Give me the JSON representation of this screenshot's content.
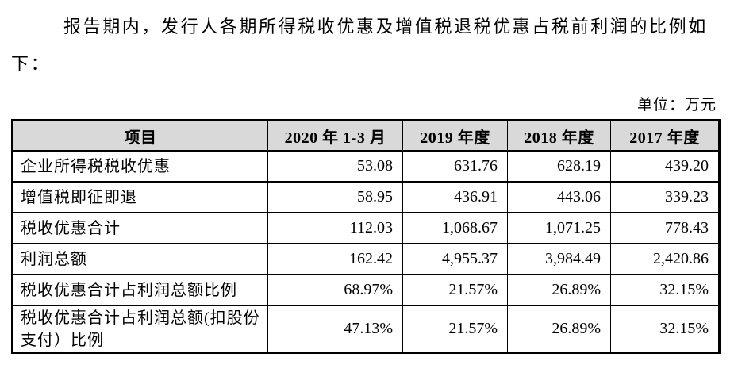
{
  "intro": {
    "line1": "报告期内，发行人各期所得税收优惠及增值税退税优惠占税前利润的比例如",
    "line2": "下："
  },
  "unit_label": "单位：万元",
  "table": {
    "columns": [
      "项目",
      "2020 年 1-3 月",
      "2019 年度",
      "2018 年度",
      "2017 年度"
    ],
    "rows": [
      {
        "label": "企业所得税税收优惠",
        "values": [
          "53.08",
          "631.76",
          "628.19",
          "439.20"
        ]
      },
      {
        "label": "增值税即征即退",
        "values": [
          "58.95",
          "436.91",
          "443.06",
          "339.23"
        ]
      },
      {
        "label": "税收优惠合计",
        "values": [
          "112.03",
          "1,068.67",
          "1,071.25",
          "778.43"
        ]
      },
      {
        "label": "利润总额",
        "values": [
          "162.42",
          "4,955.37",
          "3,984.49",
          "2,420.86"
        ]
      },
      {
        "label": "税收优惠合计占利润总额比例",
        "values": [
          "68.97%",
          "21.57%",
          "26.89%",
          "32.15%"
        ]
      },
      {
        "label": "税收优惠合计占利润总额(扣股份支付）比例",
        "values": [
          "47.13%",
          "21.57%",
          "26.89%",
          "32.15%"
        ]
      }
    ]
  },
  "colors": {
    "header_bg": "#d9d9d9",
    "border": "#000000",
    "text": "#000000"
  }
}
